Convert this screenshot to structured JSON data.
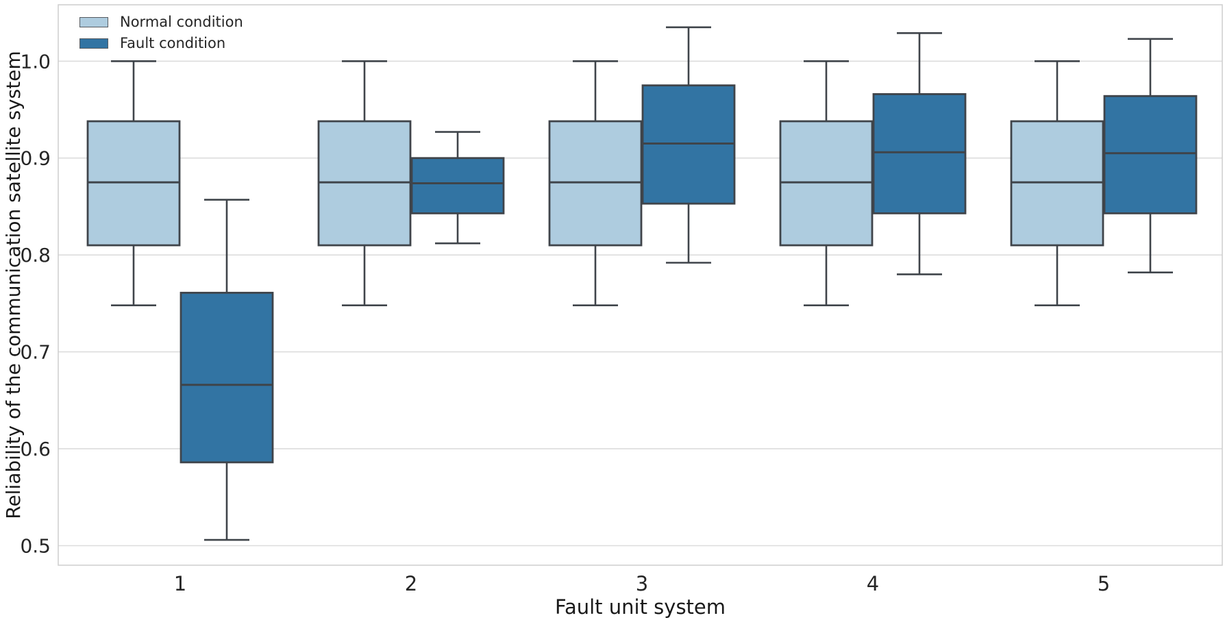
{
  "chart_data": {
    "type": "boxplot",
    "title": "",
    "xlabel": "Fault unit system",
    "ylabel": "Reliability of the communication satellite system",
    "categories": [
      "1",
      "2",
      "3",
      "4",
      "5"
    ],
    "y_ticks": [
      0.5,
      0.6,
      0.7,
      0.8,
      0.9,
      1.0
    ],
    "ylim": [
      0.478,
      1.058
    ],
    "grid": "horizontal",
    "legend_position": "upper-left",
    "series": [
      {
        "name": "Normal condition",
        "color": "#aeccdf",
        "boxes": [
          {
            "category": "1",
            "whisker_low": 0.748,
            "q1": 0.81,
            "median": 0.875,
            "q3": 0.938,
            "whisker_high": 1.0
          },
          {
            "category": "2",
            "whisker_low": 0.748,
            "q1": 0.81,
            "median": 0.875,
            "q3": 0.938,
            "whisker_high": 1.0
          },
          {
            "category": "3",
            "whisker_low": 0.748,
            "q1": 0.81,
            "median": 0.875,
            "q3": 0.938,
            "whisker_high": 1.0
          },
          {
            "category": "4",
            "whisker_low": 0.748,
            "q1": 0.81,
            "median": 0.875,
            "q3": 0.938,
            "whisker_high": 1.0
          },
          {
            "category": "5",
            "whisker_low": 0.748,
            "q1": 0.81,
            "median": 0.875,
            "q3": 0.938,
            "whisker_high": 1.0
          }
        ]
      },
      {
        "name": "Fault condition",
        "color": "#3274a3",
        "boxes": [
          {
            "category": "1",
            "whisker_low": 0.506,
            "q1": 0.586,
            "median": 0.666,
            "q3": 0.761,
            "whisker_high": 0.857
          },
          {
            "category": "2",
            "whisker_low": 0.812,
            "q1": 0.843,
            "median": 0.874,
            "q3": 0.9,
            "whisker_high": 0.927
          },
          {
            "category": "3",
            "whisker_low": 0.792,
            "q1": 0.853,
            "median": 0.915,
            "q3": 0.975,
            "whisker_high": 1.035
          },
          {
            "category": "4",
            "whisker_low": 0.78,
            "q1": 0.843,
            "median": 0.906,
            "q3": 0.966,
            "whisker_high": 1.029
          },
          {
            "category": "5",
            "whisker_low": 0.782,
            "q1": 0.843,
            "median": 0.905,
            "q3": 0.964,
            "whisker_high": 1.023
          }
        ]
      }
    ],
    "style_colors": {
      "box_line": "#3f444a",
      "grid_line": "#dcdcdc",
      "frame": "#d0d0d0",
      "tick_text": "#262626"
    }
  }
}
